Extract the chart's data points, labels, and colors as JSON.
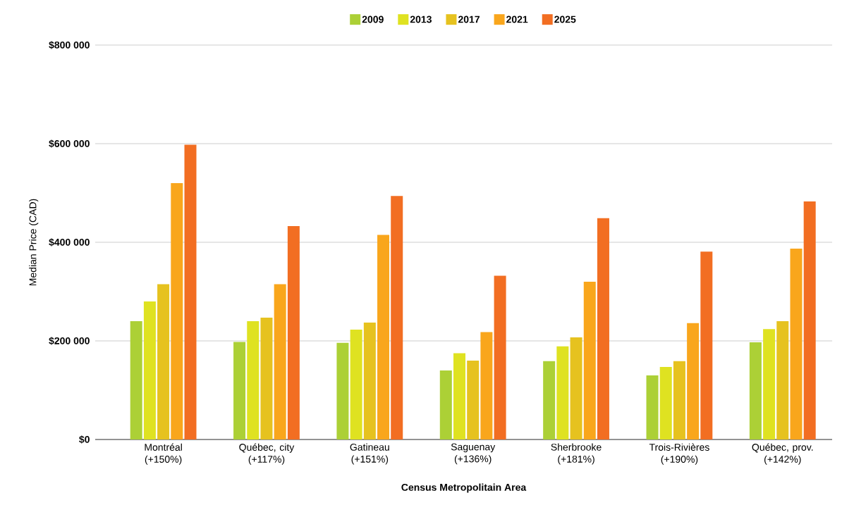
{
  "chart_data": {
    "type": "bar",
    "xlabel": "Census Metropolitain Area",
    "ylabel": "Median Price (CAD)",
    "categories": [
      "Montréal (+150%)",
      "Québec, city (+117%)",
      "Gatineau (+151%)",
      "Saguenay (+136%)",
      "Sherbrooke (+181%)",
      "Trois-Rivières (+190%)",
      "Québec, prov. (+142%)"
    ],
    "series": [
      {
        "name": "2009",
        "color": "#acd036",
        "values": [
          240000,
          198000,
          196000,
          140000,
          159000,
          130000,
          197000
        ]
      },
      {
        "name": "2013",
        "color": "#dfe221",
        "values": [
          280000,
          240000,
          223000,
          175000,
          189000,
          147000,
          224000
        ]
      },
      {
        "name": "2017",
        "color": "#e6c21f",
        "values": [
          315000,
          247000,
          237000,
          160000,
          207000,
          159000,
          240000
        ]
      },
      {
        "name": "2021",
        "color": "#f9a61c",
        "values": [
          520000,
          315000,
          415000,
          218000,
          320000,
          236000,
          387000
        ]
      },
      {
        "name": "2025",
        "color": "#f26e22",
        "values": [
          598000,
          433000,
          494000,
          332000,
          449000,
          381000,
          483000
        ]
      }
    ],
    "ylim": [
      0,
      800000
    ],
    "yticks": [
      {
        "value": 0,
        "label": "$0"
      },
      {
        "value": 200000,
        "label": "$200 000"
      },
      {
        "value": 400000,
        "label": "$400 000"
      },
      {
        "value": 600000,
        "label": "$600 000"
      },
      {
        "value": 800000,
        "label": "$800 000"
      }
    ],
    "grid": "y",
    "legend": "top"
  }
}
